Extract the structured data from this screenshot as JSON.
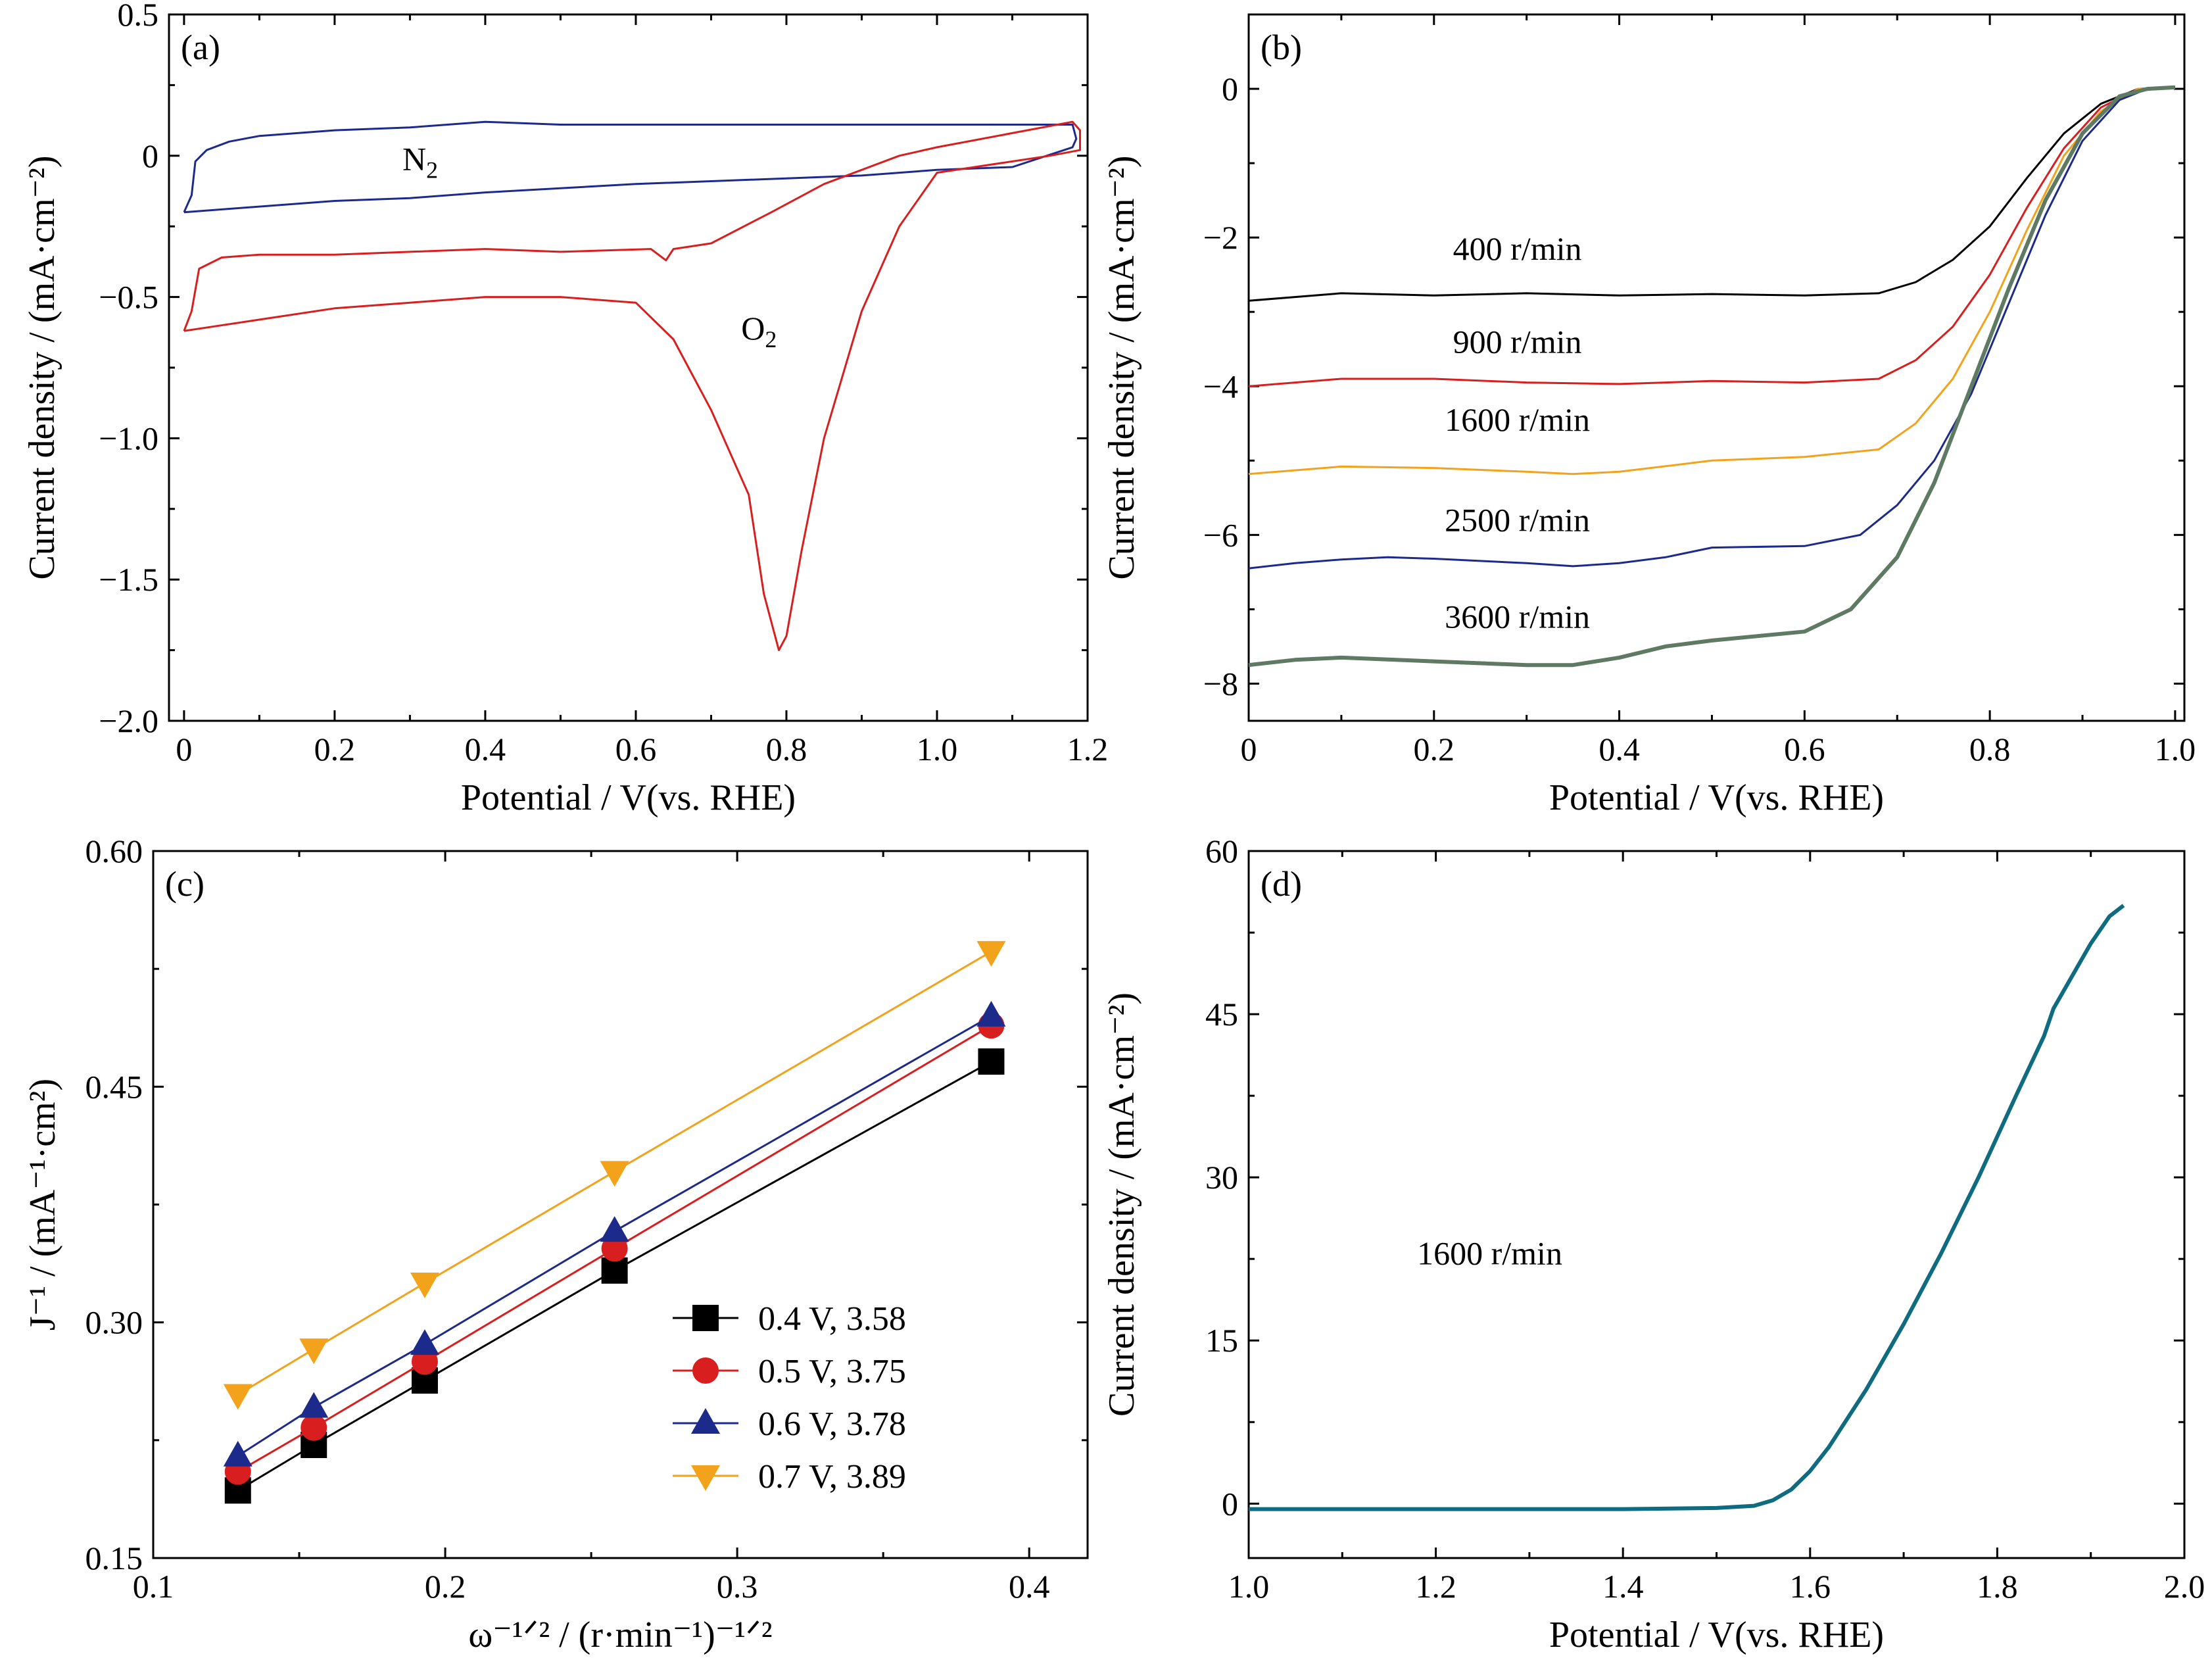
{
  "colors": {
    "black": "#000000",
    "red": "#d81e1e",
    "navy": "#1c2a8c",
    "orange": "#f2a21b",
    "green": "#5e7a63",
    "teal": "#0f6b80"
  },
  "chart_data": [
    {
      "id": "a",
      "type": "line",
      "panel_label": "(a)",
      "xlabel": "Potential / V(vs. RHE)",
      "ylabel": "Current density / (mA·cm⁻²)",
      "xlim": [
        -0.02,
        1.2
      ],
      "ylim": [
        -2.0,
        0.5
      ],
      "xticks": [
        0,
        0.2,
        0.4,
        0.6,
        0.8,
        1.0,
        1.2
      ],
      "xtick_labels": [
        "0",
        "0.2",
        "0.4",
        "0.6",
        "0.8",
        "1.0",
        "1.2"
      ],
      "yticks": [
        -2.0,
        -1.5,
        -1.0,
        -0.5,
        0,
        0.5
      ],
      "ytick_labels": [
        "−2.0",
        "−1.5",
        "−1.0",
        "−0.5",
        "0",
        "0.5"
      ],
      "annotations": [
        {
          "text": "N",
          "sub": "2",
          "x": 0.29,
          "y": -0.05
        },
        {
          "text": "O",
          "sub": "2",
          "x": 0.74,
          "y": -0.65
        }
      ],
      "series": [
        {
          "name": "N₂",
          "color": "navy",
          "points": [
            [
              0.0,
              -0.2
            ],
            [
              0.01,
              -0.14
            ],
            [
              0.015,
              -0.02
            ],
            [
              0.03,
              0.02
            ],
            [
              0.06,
              0.05
            ],
            [
              0.1,
              0.07
            ],
            [
              0.2,
              0.09
            ],
            [
              0.3,
              0.1
            ],
            [
              0.4,
              0.12
            ],
            [
              0.5,
              0.11
            ],
            [
              0.6,
              0.11
            ],
            [
              0.7,
              0.11
            ],
            [
              0.8,
              0.11
            ],
            [
              0.9,
              0.11
            ],
            [
              1.0,
              0.11
            ],
            [
              1.1,
              0.11
            ],
            [
              1.18,
              0.11
            ],
            [
              1.185,
              0.06
            ],
            [
              1.18,
              0.03
            ],
            [
              1.1,
              -0.04
            ],
            [
              1.0,
              -0.05
            ],
            [
              0.9,
              -0.07
            ],
            [
              0.8,
              -0.08
            ],
            [
              0.6,
              -0.1
            ],
            [
              0.4,
              -0.13
            ],
            [
              0.3,
              -0.15
            ],
            [
              0.2,
              -0.16
            ],
            [
              0.1,
              -0.18
            ],
            [
              0.0,
              -0.2
            ]
          ]
        },
        {
          "name": "O₂",
          "color": "red",
          "points": [
            [
              0.0,
              -0.62
            ],
            [
              0.01,
              -0.55
            ],
            [
              0.02,
              -0.4
            ],
            [
              0.05,
              -0.36
            ],
            [
              0.1,
              -0.35
            ],
            [
              0.2,
              -0.35
            ],
            [
              0.3,
              -0.34
            ],
            [
              0.4,
              -0.33
            ],
            [
              0.5,
              -0.34
            ],
            [
              0.62,
              -0.33
            ],
            [
              0.64,
              -0.37
            ],
            [
              0.65,
              -0.33
            ],
            [
              0.7,
              -0.31
            ],
            [
              0.78,
              -0.2
            ],
            [
              0.85,
              -0.1
            ],
            [
              0.9,
              -0.05
            ],
            [
              0.95,
              0.0
            ],
            [
              1.0,
              0.03
            ],
            [
              1.1,
              0.08
            ],
            [
              1.18,
              0.12
            ],
            [
              1.19,
              0.09
            ],
            [
              1.19,
              0.02
            ],
            [
              1.15,
              0.0
            ],
            [
              1.0,
              -0.06
            ],
            [
              0.95,
              -0.25
            ],
            [
              0.9,
              -0.55
            ],
            [
              0.85,
              -1.0
            ],
            [
              0.82,
              -1.4
            ],
            [
              0.8,
              -1.7
            ],
            [
              0.79,
              -1.75
            ],
            [
              0.77,
              -1.55
            ],
            [
              0.75,
              -1.2
            ],
            [
              0.73,
              -1.08
            ],
            [
              0.7,
              -0.9
            ],
            [
              0.65,
              -0.65
            ],
            [
              0.6,
              -0.52
            ],
            [
              0.5,
              -0.5
            ],
            [
              0.4,
              -0.5
            ],
            [
              0.3,
              -0.52
            ],
            [
              0.2,
              -0.54
            ],
            [
              0.1,
              -0.58
            ],
            [
              0.0,
              -0.62
            ]
          ]
        }
      ]
    },
    {
      "id": "b",
      "type": "line",
      "panel_label": "(b)",
      "xlabel": "Potential / V(vs. RHE)",
      "ylabel": "Current density / (mA·cm⁻²)",
      "xlim": [
        0,
        1.01
      ],
      "ylim": [
        -8.5,
        1.0
      ],
      "xticks": [
        0,
        0.2,
        0.4,
        0.6,
        0.8,
        1.0
      ],
      "xtick_labels": [
        "0",
        "0.2",
        "0.4",
        "0.6",
        "0.8",
        "1.0"
      ],
      "yticks": [
        -8,
        -6,
        -4,
        -2,
        0
      ],
      "ytick_labels": [
        "−8",
        "−6",
        "−4",
        "−2",
        "0"
      ],
      "series": [
        {
          "name": "400 r/min",
          "color": "black",
          "label_pos": [
            0.29,
            -2.3
          ],
          "points": [
            [
              0.0,
              -2.85
            ],
            [
              0.1,
              -2.75
            ],
            [
              0.2,
              -2.78
            ],
            [
              0.3,
              -2.75
            ],
            [
              0.4,
              -2.78
            ],
            [
              0.5,
              -2.76
            ],
            [
              0.6,
              -2.78
            ],
            [
              0.68,
              -2.75
            ],
            [
              0.72,
              -2.6
            ],
            [
              0.76,
              -2.3
            ],
            [
              0.8,
              -1.85
            ],
            [
              0.84,
              -1.2
            ],
            [
              0.88,
              -0.6
            ],
            [
              0.92,
              -0.2
            ],
            [
              0.96,
              0.0
            ],
            [
              1.0,
              0.02
            ]
          ]
        },
        {
          "name": "900 r/min",
          "color": "red",
          "label_pos": [
            0.29,
            -3.55
          ],
          "points": [
            [
              0.0,
              -4.0
            ],
            [
              0.1,
              -3.9
            ],
            [
              0.2,
              -3.9
            ],
            [
              0.3,
              -3.95
            ],
            [
              0.4,
              -3.97
            ],
            [
              0.5,
              -3.93
            ],
            [
              0.6,
              -3.95
            ],
            [
              0.68,
              -3.9
            ],
            [
              0.72,
              -3.65
            ],
            [
              0.76,
              -3.2
            ],
            [
              0.8,
              -2.5
            ],
            [
              0.84,
              -1.6
            ],
            [
              0.88,
              -0.8
            ],
            [
              0.92,
              -0.25
            ],
            [
              0.96,
              0.0
            ],
            [
              1.0,
              0.02
            ]
          ]
        },
        {
          "name": "1600 r/min",
          "color": "orange",
          "label_pos": [
            0.29,
            -4.6
          ],
          "points": [
            [
              0.0,
              -5.18
            ],
            [
              0.1,
              -5.08
            ],
            [
              0.2,
              -5.1
            ],
            [
              0.3,
              -5.15
            ],
            [
              0.35,
              -5.18
            ],
            [
              0.4,
              -5.15
            ],
            [
              0.5,
              -5.0
            ],
            [
              0.6,
              -4.95
            ],
            [
              0.68,
              -4.85
            ],
            [
              0.72,
              -4.5
            ],
            [
              0.76,
              -3.9
            ],
            [
              0.8,
              -3.0
            ],
            [
              0.84,
              -1.9
            ],
            [
              0.88,
              -0.9
            ],
            [
              0.92,
              -0.3
            ],
            [
              0.96,
              0.0
            ],
            [
              1.0,
              0.02
            ]
          ]
        },
        {
          "name": "2500 r/min",
          "color": "navy",
          "label_pos": [
            0.29,
            -5.95
          ],
          "points": [
            [
              0.0,
              -6.45
            ],
            [
              0.05,
              -6.38
            ],
            [
              0.1,
              -6.33
            ],
            [
              0.15,
              -6.3
            ],
            [
              0.2,
              -6.32
            ],
            [
              0.3,
              -6.38
            ],
            [
              0.35,
              -6.42
            ],
            [
              0.4,
              -6.38
            ],
            [
              0.45,
              -6.3
            ],
            [
              0.5,
              -6.17
            ],
            [
              0.6,
              -6.15
            ],
            [
              0.66,
              -6.0
            ],
            [
              0.7,
              -5.6
            ],
            [
              0.74,
              -5.0
            ],
            [
              0.78,
              -4.1
            ],
            [
              0.82,
              -2.9
            ],
            [
              0.86,
              -1.7
            ],
            [
              0.9,
              -0.7
            ],
            [
              0.94,
              -0.15
            ],
            [
              0.97,
              0.0
            ],
            [
              1.0,
              0.02
            ]
          ]
        },
        {
          "name": "3600 r/min",
          "color": "green",
          "label_pos": [
            0.29,
            -7.25
          ],
          "points": [
            [
              0.0,
              -7.75
            ],
            [
              0.05,
              -7.68
            ],
            [
              0.1,
              -7.65
            ],
            [
              0.2,
              -7.7
            ],
            [
              0.3,
              -7.75
            ],
            [
              0.35,
              -7.75
            ],
            [
              0.4,
              -7.65
            ],
            [
              0.45,
              -7.5
            ],
            [
              0.5,
              -7.42
            ],
            [
              0.6,
              -7.3
            ],
            [
              0.65,
              -7.0
            ],
            [
              0.7,
              -6.3
            ],
            [
              0.74,
              -5.3
            ],
            [
              0.78,
              -4.0
            ],
            [
              0.82,
              -2.7
            ],
            [
              0.86,
              -1.5
            ],
            [
              0.9,
              -0.6
            ],
            [
              0.94,
              -0.1
            ],
            [
              0.97,
              0.0
            ],
            [
              1.0,
              0.02
            ]
          ]
        }
      ]
    },
    {
      "id": "c",
      "type": "scatter",
      "panel_label": "(c)",
      "xlabel": "ω⁻¹ᐟ² / (r·min⁻¹)⁻¹ᐟ²",
      "ylabel": "J⁻¹ / (mA⁻¹·cm²)",
      "xlim": [
        0.1,
        0.42
      ],
      "ylim": [
        0.15,
        0.6
      ],
      "xticks": [
        0.1,
        0.2,
        0.3,
        0.4
      ],
      "xtick_labels": [
        "0.1",
        "0.2",
        "0.3",
        "0.4"
      ],
      "yticks": [
        0.15,
        0.3,
        0.45,
        0.6
      ],
      "ytick_labels": [
        "0.15",
        "0.30",
        "0.45",
        "0.60"
      ],
      "x": [
        0.129,
        0.155,
        0.193,
        0.258,
        0.387
      ],
      "legend_position": "bottom-right",
      "series": [
        {
          "name": "0.4 V, 3.58",
          "color": "black",
          "marker": "square",
          "values": [
            0.193,
            0.222,
            0.263,
            0.333,
            0.466
          ]
        },
        {
          "name": "0.5 V, 3.75",
          "color": "red",
          "marker": "circle",
          "values": [
            0.205,
            0.233,
            0.275,
            0.347,
            0.489
          ]
        },
        {
          "name": "0.6 V, 3.78",
          "color": "navy",
          "marker": "triangle-up",
          "values": [
            0.215,
            0.246,
            0.286,
            0.358,
            0.495
          ]
        },
        {
          "name": "0.7 V, 3.89",
          "color": "orange",
          "marker": "triangle-down",
          "values": [
            0.254,
            0.283,
            0.325,
            0.396,
            0.536
          ]
        }
      ]
    },
    {
      "id": "d",
      "type": "line",
      "panel_label": "(d)",
      "xlabel": "Potential / V(vs. RHE)",
      "ylabel": "Current density / (mA·cm⁻²)",
      "xlim": [
        1.0,
        2.0
      ],
      "ylim": [
        -5,
        60
      ],
      "xticks": [
        1.0,
        1.2,
        1.4,
        1.6,
        1.8,
        2.0
      ],
      "xtick_labels": [
        "1.0",
        "1.2",
        "1.4",
        "1.6",
        "1.8",
        "2.0"
      ],
      "yticks": [
        0,
        15,
        30,
        45,
        60
      ],
      "ytick_labels": [
        "0",
        "15",
        "30",
        "45",
        "60"
      ],
      "annotations": [
        {
          "text": "1600 r/min",
          "x": 1.18,
          "y": 22
        }
      ],
      "series": [
        {
          "name": "1600 r/min",
          "color": "teal",
          "points": [
            [
              1.0,
              -0.5
            ],
            [
              1.2,
              -0.5
            ],
            [
              1.4,
              -0.5
            ],
            [
              1.5,
              -0.4
            ],
            [
              1.54,
              -0.2
            ],
            [
              1.56,
              0.3
            ],
            [
              1.58,
              1.3
            ],
            [
              1.6,
              3.0
            ],
            [
              1.62,
              5.2
            ],
            [
              1.66,
              10.5
            ],
            [
              1.7,
              16.5
            ],
            [
              1.74,
              23.0
            ],
            [
              1.78,
              30.0
            ],
            [
              1.82,
              37.5
            ],
            [
              1.85,
              43.0
            ],
            [
              1.86,
              45.5
            ],
            [
              1.88,
              48.5
            ],
            [
              1.9,
              51.5
            ],
            [
              1.92,
              54.0
            ],
            [
              1.935,
              55.0
            ]
          ]
        }
      ]
    }
  ]
}
